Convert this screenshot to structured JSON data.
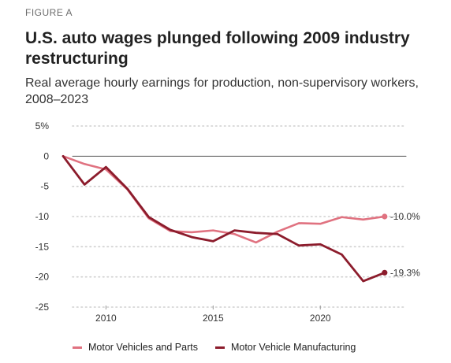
{
  "header": {
    "kicker": "FIGURE A",
    "title": "U.S. auto wages plunged following 2009 industry restructuring",
    "subtitle": "Real average hourly earnings for production, non-supervisory workers, 2008–2023"
  },
  "colors": {
    "parts": "#e07280",
    "manufacturing": "#8c1c2c",
    "grid": "#cfcfcf",
    "zero_line": "#555555"
  },
  "chart_data": {
    "type": "line",
    "title": "U.S. auto wages plunged following 2009 industry restructuring",
    "subtitle": "Real average hourly earnings for production, non-supervisory workers, 2008–2023",
    "xlabel": "",
    "ylabel": "",
    "xlim": [
      2008,
      2024
    ],
    "ylim": [
      -25,
      5
    ],
    "y_ticks": [
      5,
      0,
      -5,
      -10,
      -15,
      -20,
      -25
    ],
    "y_tick_labels": [
      "5%",
      "0",
      "-5",
      "-10",
      "-15",
      "-20",
      "-25"
    ],
    "x_ticks": [
      2010,
      2015,
      2020
    ],
    "x_tick_labels": [
      "2010",
      "2015",
      "2020"
    ],
    "grid": "horizontal dotted",
    "legend_position": "bottom",
    "x": [
      2008,
      2009,
      2010,
      2011,
      2012,
      2013,
      2014,
      2015,
      2016,
      2017,
      2018,
      2019,
      2020,
      2021,
      2022,
      2023
    ],
    "series": [
      {
        "name": "Motor Vehicles and Parts",
        "values": [
          0,
          -1.3,
          -2.2,
          -5.5,
          -10.3,
          -12.4,
          -12.6,
          -12.3,
          -12.9,
          -14.3,
          -12.5,
          -11.1,
          -11.2,
          -10.1,
          -10.5,
          -10.0
        ],
        "end_label": "-10.0%"
      },
      {
        "name": "Motor Vehicle Manufacturing",
        "values": [
          0,
          -4.7,
          -1.8,
          -5.4,
          -10.1,
          -12.2,
          -13.4,
          -14.1,
          -12.3,
          -12.7,
          -12.9,
          -14.8,
          -14.6,
          -16.3,
          -20.7,
          -19.3
        ],
        "end_label": "-19.3%"
      }
    ]
  }
}
